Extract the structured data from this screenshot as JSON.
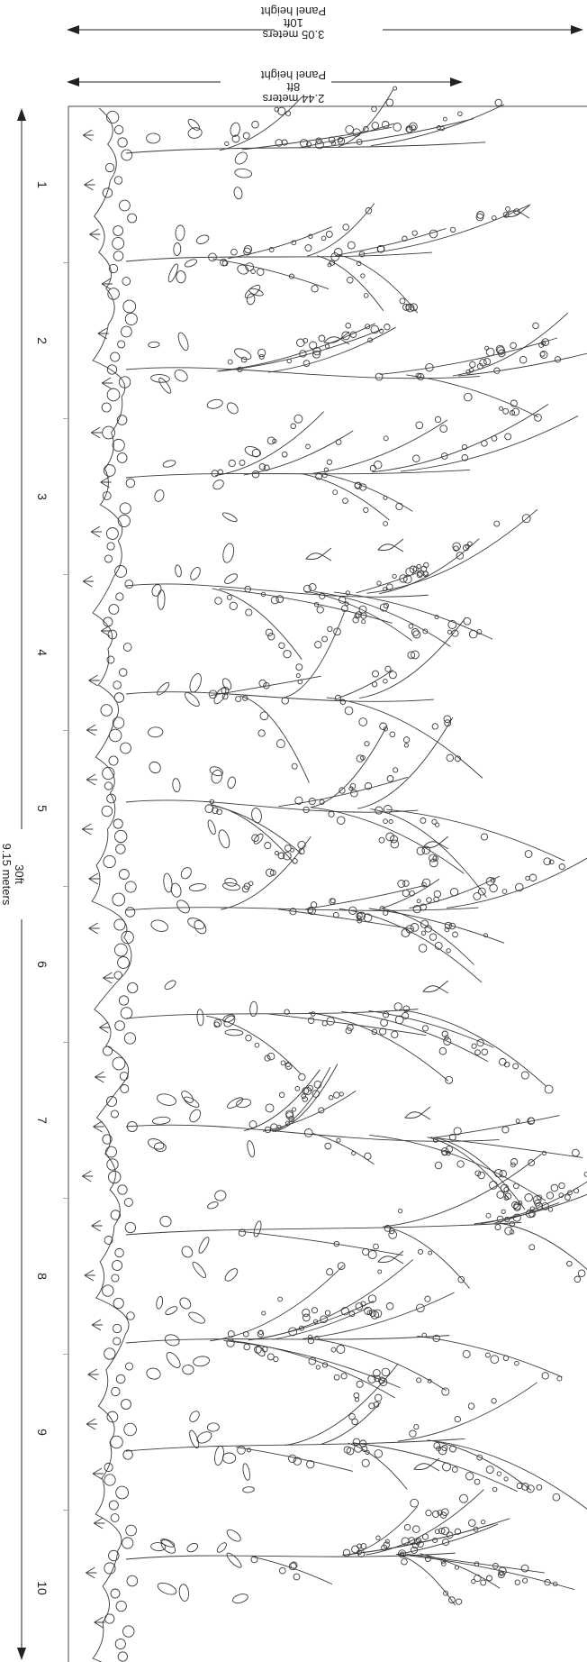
{
  "dimensions": {
    "panel_height_10ft": {
      "line1": "Panel height",
      "line2": "10ft",
      "line3": "3.05 meters"
    },
    "panel_height_8ft": {
      "line1": "Panel height",
      "line2": "8ft",
      "line3": "2.44 meters"
    },
    "width_30ft": {
      "line1": "30ft",
      "line2": "9.15 meters"
    }
  },
  "panels": [
    "1",
    "2",
    "3",
    "4",
    "5",
    "6",
    "7",
    "8",
    "9",
    "10"
  ],
  "colors": {
    "line": "#222222",
    "artwork_stroke": "#3a3a3a",
    "background": "#ffffff"
  }
}
